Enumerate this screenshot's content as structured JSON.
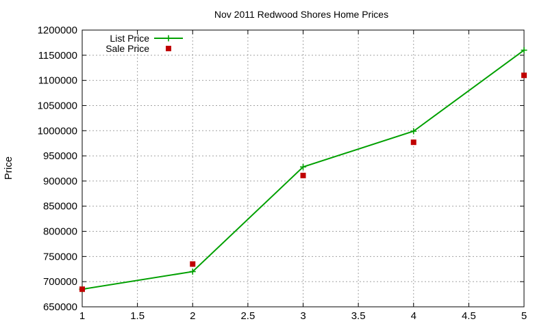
{
  "chart_data": {
    "type": "line",
    "title": "Nov 2011 Redwood Shores Home Prices",
    "xlabel": "",
    "ylabel": "Price",
    "xlim": [
      1,
      5
    ],
    "ylim": [
      650000,
      1200000
    ],
    "x_ticks": [
      "1",
      "1.5",
      "2",
      "2.5",
      "3",
      "3.5",
      "4",
      "4.5",
      "5"
    ],
    "y_ticks": [
      "650000",
      "700000",
      "750000",
      "800000",
      "850000",
      "900000",
      "950000",
      "1000000",
      "1050000",
      "1100000",
      "1150000",
      "1200000"
    ],
    "grid": true,
    "legend_position": "top-left",
    "series": [
      {
        "name": "List Price",
        "style": "line-with-plus-markers",
        "color": "#00a000",
        "x": [
          1,
          2,
          3,
          4,
          5
        ],
        "y": [
          685000,
          720000,
          928000,
          999000,
          1160000
        ]
      },
      {
        "name": "Sale Price",
        "style": "square-markers",
        "color": "#c00000",
        "x": [
          1,
          2,
          3,
          4,
          5
        ],
        "y": [
          685000,
          735000,
          911000,
          977000,
          1110000
        ]
      }
    ]
  }
}
